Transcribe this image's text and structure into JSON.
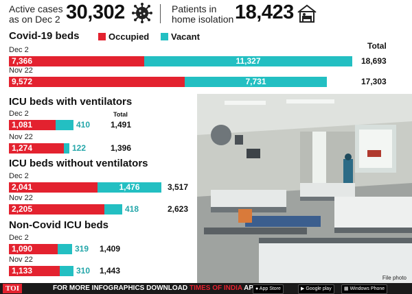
{
  "header": {
    "active_label_line1": "Active cases",
    "active_label_line2": "as on Dec 2",
    "active_value": "30,302",
    "isolation_label_line1": "Patients in",
    "isolation_label_line2": "home isolation",
    "isolation_value": "18,423"
  },
  "legend": {
    "occupied": "Occupied",
    "vacant": "Vacant"
  },
  "total_header": "Total",
  "icu_total_header": "Total",
  "colors": {
    "occupied": "#e3222f",
    "vacant": "#23bfc2"
  },
  "chart_data": [
    {
      "type": "bar",
      "stacked": true,
      "orientation": "horizontal",
      "title": "Covid-19 beds",
      "categories": [
        "Dec 2",
        "Nov 22"
      ],
      "series": [
        {
          "name": "Occupied",
          "values": [
            7366,
            9572
          ]
        },
        {
          "name": "Vacant",
          "values": [
            11327,
            7731
          ]
        }
      ],
      "totals": [
        18693,
        17303
      ],
      "labels": {
        "occupied": [
          "7,366",
          "9,572"
        ],
        "vacant": [
          "11,327",
          "7,731"
        ],
        "totals": [
          "18,693",
          "17,303"
        ]
      }
    },
    {
      "type": "bar",
      "stacked": true,
      "orientation": "horizontal",
      "title": "ICU beds with ventilators",
      "categories": [
        "Dec 2",
        "Nov 22"
      ],
      "series": [
        {
          "name": "Occupied",
          "values": [
            1081,
            1274
          ]
        },
        {
          "name": "Vacant",
          "values": [
            410,
            122
          ]
        }
      ],
      "totals": [
        1491,
        1396
      ],
      "labels": {
        "occupied": [
          "1,081",
          "1,274"
        ],
        "vacant": [
          "410",
          "122"
        ],
        "totals": [
          "1,491",
          "1,396"
        ]
      }
    },
    {
      "type": "bar",
      "stacked": true,
      "orientation": "horizontal",
      "title": "ICU beds without ventilators",
      "categories": [
        "Dec 2",
        "Nov 22"
      ],
      "series": [
        {
          "name": "Occupied",
          "values": [
            2041,
            2205
          ]
        },
        {
          "name": "Vacant",
          "values": [
            1476,
            418
          ]
        }
      ],
      "totals": [
        3517,
        2623
      ],
      "labels": {
        "occupied": [
          "2,041",
          "2,205"
        ],
        "vacant": [
          "1,476",
          "418"
        ],
        "totals": [
          "3,517",
          "2,623"
        ]
      }
    },
    {
      "type": "bar",
      "stacked": true,
      "orientation": "horizontal",
      "title": "Non-Covid ICU beds",
      "categories": [
        "Dec 2",
        "Nov 22"
      ],
      "series": [
        {
          "name": "Occupied",
          "values": [
            1090,
            1133
          ]
        },
        {
          "name": "Vacant",
          "values": [
            319,
            310
          ]
        }
      ],
      "totals": [
        1409,
        1443
      ],
      "labels": {
        "occupied": [
          "1,090",
          "1,133"
        ],
        "vacant": [
          "319",
          "310"
        ],
        "totals": [
          "1,409",
          "1,443"
        ]
      }
    }
  ],
  "photo": {
    "credit": "File photo"
  },
  "footer": {
    "logo": "TOI",
    "text_prefix": "FOR MORE  INFOGRAPHICS DOWNLOAD ",
    "text_brand": "TIMES OF INDIA",
    "text_suffix": " APP",
    "app_store": "App Store",
    "google_play": "Google play",
    "windows_phone": "Windows Phone"
  }
}
